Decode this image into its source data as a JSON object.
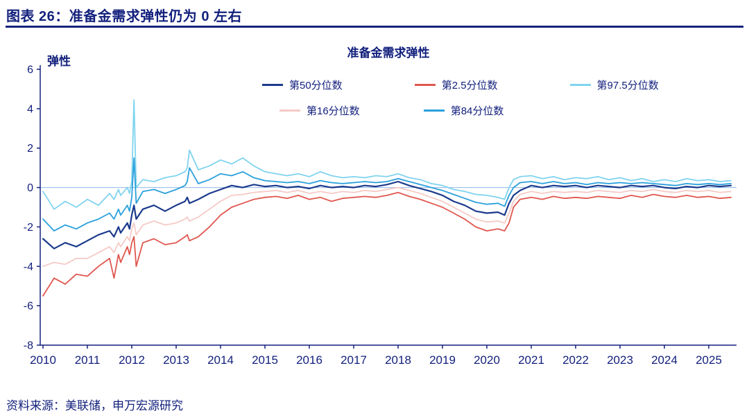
{
  "page": {
    "title": "图表 26：准备金需求弹性仍为 0 左右",
    "source": "资料来源：美联储，申万宏源研究"
  },
  "colors": {
    "text_navy": "#13217d",
    "axis": "#13217d",
    "zero_line": "#8fb8e8"
  },
  "chart_data": {
    "type": "line",
    "title": "准备金需求弹性",
    "ylabel": "弹性",
    "xlabel": "",
    "ylim": [
      -8,
      6
    ],
    "xlim": [
      2010,
      2025.6
    ],
    "grid": false,
    "legend_position": "top",
    "zero_line": true,
    "y_ticks": [
      6,
      4,
      2,
      0,
      -2,
      -4,
      -6,
      -8
    ],
    "x_ticks": [
      2010,
      2011,
      2012,
      2013,
      2014,
      2015,
      2016,
      2017,
      2018,
      2019,
      2020,
      2021,
      2022,
      2023,
      2024,
      2025
    ],
    "x": [
      2010.0,
      2010.25,
      2010.5,
      2010.75,
      2011.0,
      2011.25,
      2011.5,
      2011.6,
      2011.7,
      2011.75,
      2011.9,
      2011.95,
      2012.0,
      2012.05,
      2012.1,
      2012.25,
      2012.5,
      2012.75,
      2013.0,
      2013.2,
      2013.25,
      2013.3,
      2013.5,
      2013.75,
      2014.0,
      2014.25,
      2014.5,
      2014.75,
      2015.0,
      2015.25,
      2015.5,
      2015.75,
      2016.0,
      2016.25,
      2016.5,
      2016.75,
      2017.0,
      2017.25,
      2017.5,
      2017.75,
      2018.0,
      2018.25,
      2018.5,
      2018.75,
      2019.0,
      2019.25,
      2019.5,
      2019.75,
      2020.0,
      2020.25,
      2020.4,
      2020.5,
      2020.6,
      2020.75,
      2021.0,
      2021.25,
      2021.5,
      2021.75,
      2022.0,
      2022.25,
      2022.5,
      2022.75,
      2023.0,
      2023.25,
      2023.5,
      2023.75,
      2024.0,
      2024.25,
      2024.5,
      2024.75,
      2025.0,
      2025.25,
      2025.5
    ],
    "series": [
      {
        "name": "第50分位数",
        "color": "#1b3a8c",
        "values": [
          -2.6,
          -3.1,
          -2.8,
          -3.0,
          -2.7,
          -2.4,
          -2.2,
          -2.5,
          -2.0,
          -2.3,
          -1.8,
          -2.1,
          -1.4,
          -0.9,
          -1.6,
          -1.1,
          -0.9,
          -1.2,
          -0.9,
          -0.7,
          -0.5,
          -0.8,
          -0.6,
          -0.3,
          -0.1,
          0.1,
          0.0,
          0.15,
          0.05,
          0.1,
          0.0,
          0.05,
          -0.05,
          0.1,
          0.0,
          0.05,
          0.0,
          0.1,
          0.05,
          0.15,
          0.3,
          0.1,
          -0.05,
          -0.2,
          -0.4,
          -0.7,
          -0.9,
          -1.2,
          -1.3,
          -1.25,
          -1.4,
          -0.8,
          -0.4,
          -0.15,
          0.1,
          0.0,
          0.1,
          0.05,
          0.1,
          0.0,
          0.1,
          0.05,
          0.0,
          0.1,
          0.05,
          0.1,
          0.0,
          -0.05,
          0.05,
          0.0,
          0.1,
          0.05,
          0.1
        ]
      },
      {
        "name": "第2.5分位数",
        "color": "#e0564e",
        "values": [
          -5.5,
          -4.6,
          -4.9,
          -4.4,
          -4.5,
          -4.0,
          -3.6,
          -4.6,
          -3.4,
          -3.8,
          -3.0,
          -3.4,
          -2.8,
          -2.5,
          -4.0,
          -2.8,
          -2.6,
          -2.9,
          -2.8,
          -2.5,
          -2.4,
          -2.7,
          -2.5,
          -2.0,
          -1.4,
          -1.0,
          -0.8,
          -0.6,
          -0.5,
          -0.45,
          -0.55,
          -0.4,
          -0.6,
          -0.5,
          -0.7,
          -0.55,
          -0.5,
          -0.45,
          -0.5,
          -0.4,
          -0.25,
          -0.45,
          -0.6,
          -0.8,
          -1.0,
          -1.3,
          -1.6,
          -2.0,
          -2.2,
          -2.1,
          -2.2,
          -1.8,
          -1.0,
          -0.6,
          -0.5,
          -0.6,
          -0.45,
          -0.55,
          -0.5,
          -0.55,
          -0.45,
          -0.5,
          -0.55,
          -0.4,
          -0.5,
          -0.35,
          -0.45,
          -0.5,
          -0.4,
          -0.5,
          -0.45,
          -0.55,
          -0.5
        ]
      },
      {
        "name": "第97.5分位数",
        "color": "#7fd3ef",
        "values": [
          -0.2,
          -1.1,
          -0.7,
          -1.0,
          -0.6,
          -0.9,
          -0.3,
          -0.6,
          -0.1,
          -0.4,
          0.0,
          -0.3,
          0.3,
          4.45,
          0.0,
          0.4,
          0.3,
          0.5,
          0.6,
          0.8,
          1.0,
          1.9,
          0.9,
          1.1,
          1.4,
          1.2,
          1.5,
          1.1,
          0.8,
          0.7,
          0.6,
          0.7,
          0.55,
          0.8,
          0.6,
          0.5,
          0.55,
          0.5,
          0.6,
          0.55,
          0.7,
          0.5,
          0.4,
          0.2,
          0.1,
          -0.1,
          -0.2,
          -0.35,
          -0.4,
          -0.5,
          -0.6,
          0.0,
          0.4,
          0.55,
          0.6,
          0.45,
          0.55,
          0.4,
          0.5,
          0.45,
          0.55,
          0.4,
          0.5,
          0.35,
          0.45,
          0.3,
          0.4,
          0.3,
          0.45,
          0.35,
          0.4,
          0.3,
          0.35
        ]
      },
      {
        "name": "第16分位数",
        "color": "#f5cac6",
        "values": [
          -4.0,
          -3.8,
          -3.9,
          -3.6,
          -3.6,
          -3.3,
          -3.0,
          -3.3,
          -2.8,
          -3.0,
          -2.5,
          -2.7,
          -2.1,
          -1.8,
          -2.4,
          -1.9,
          -1.7,
          -1.9,
          -1.8,
          -1.6,
          -1.5,
          -1.7,
          -1.5,
          -1.1,
          -0.7,
          -0.4,
          -0.35,
          -0.25,
          -0.2,
          -0.15,
          -0.25,
          -0.15,
          -0.3,
          -0.2,
          -0.3,
          -0.2,
          -0.25,
          -0.15,
          -0.2,
          -0.1,
          0.0,
          -0.15,
          -0.3,
          -0.5,
          -0.7,
          -1.0,
          -1.3,
          -1.6,
          -1.75,
          -1.7,
          -1.8,
          -1.3,
          -0.7,
          -0.35,
          -0.2,
          -0.3,
          -0.2,
          -0.25,
          -0.2,
          -0.25,
          -0.15,
          -0.2,
          -0.25,
          -0.15,
          -0.2,
          -0.1,
          -0.2,
          -0.25,
          -0.15,
          -0.2,
          -0.15,
          -0.25,
          -0.2
        ]
      },
      {
        "name": "第84分位数",
        "color": "#2aa0dc",
        "values": [
          -1.6,
          -2.2,
          -1.9,
          -2.1,
          -1.8,
          -1.6,
          -1.3,
          -1.6,
          -1.1,
          -1.4,
          -0.9,
          -1.2,
          -0.5,
          1.5,
          -0.8,
          -0.2,
          -0.1,
          -0.3,
          -0.1,
          0.1,
          0.3,
          1.0,
          0.2,
          0.4,
          0.7,
          0.6,
          0.8,
          0.5,
          0.35,
          0.3,
          0.25,
          0.3,
          0.2,
          0.35,
          0.25,
          0.2,
          0.25,
          0.3,
          0.25,
          0.3,
          0.45,
          0.3,
          0.15,
          0.0,
          -0.15,
          -0.35,
          -0.55,
          -0.75,
          -0.85,
          -0.8,
          -0.95,
          -0.4,
          0.0,
          0.25,
          0.3,
          0.2,
          0.3,
          0.2,
          0.25,
          0.15,
          0.25,
          0.2,
          0.25,
          0.2,
          0.25,
          0.2,
          0.15,
          0.1,
          0.2,
          0.15,
          0.2,
          0.15,
          0.2
        ]
      }
    ]
  }
}
